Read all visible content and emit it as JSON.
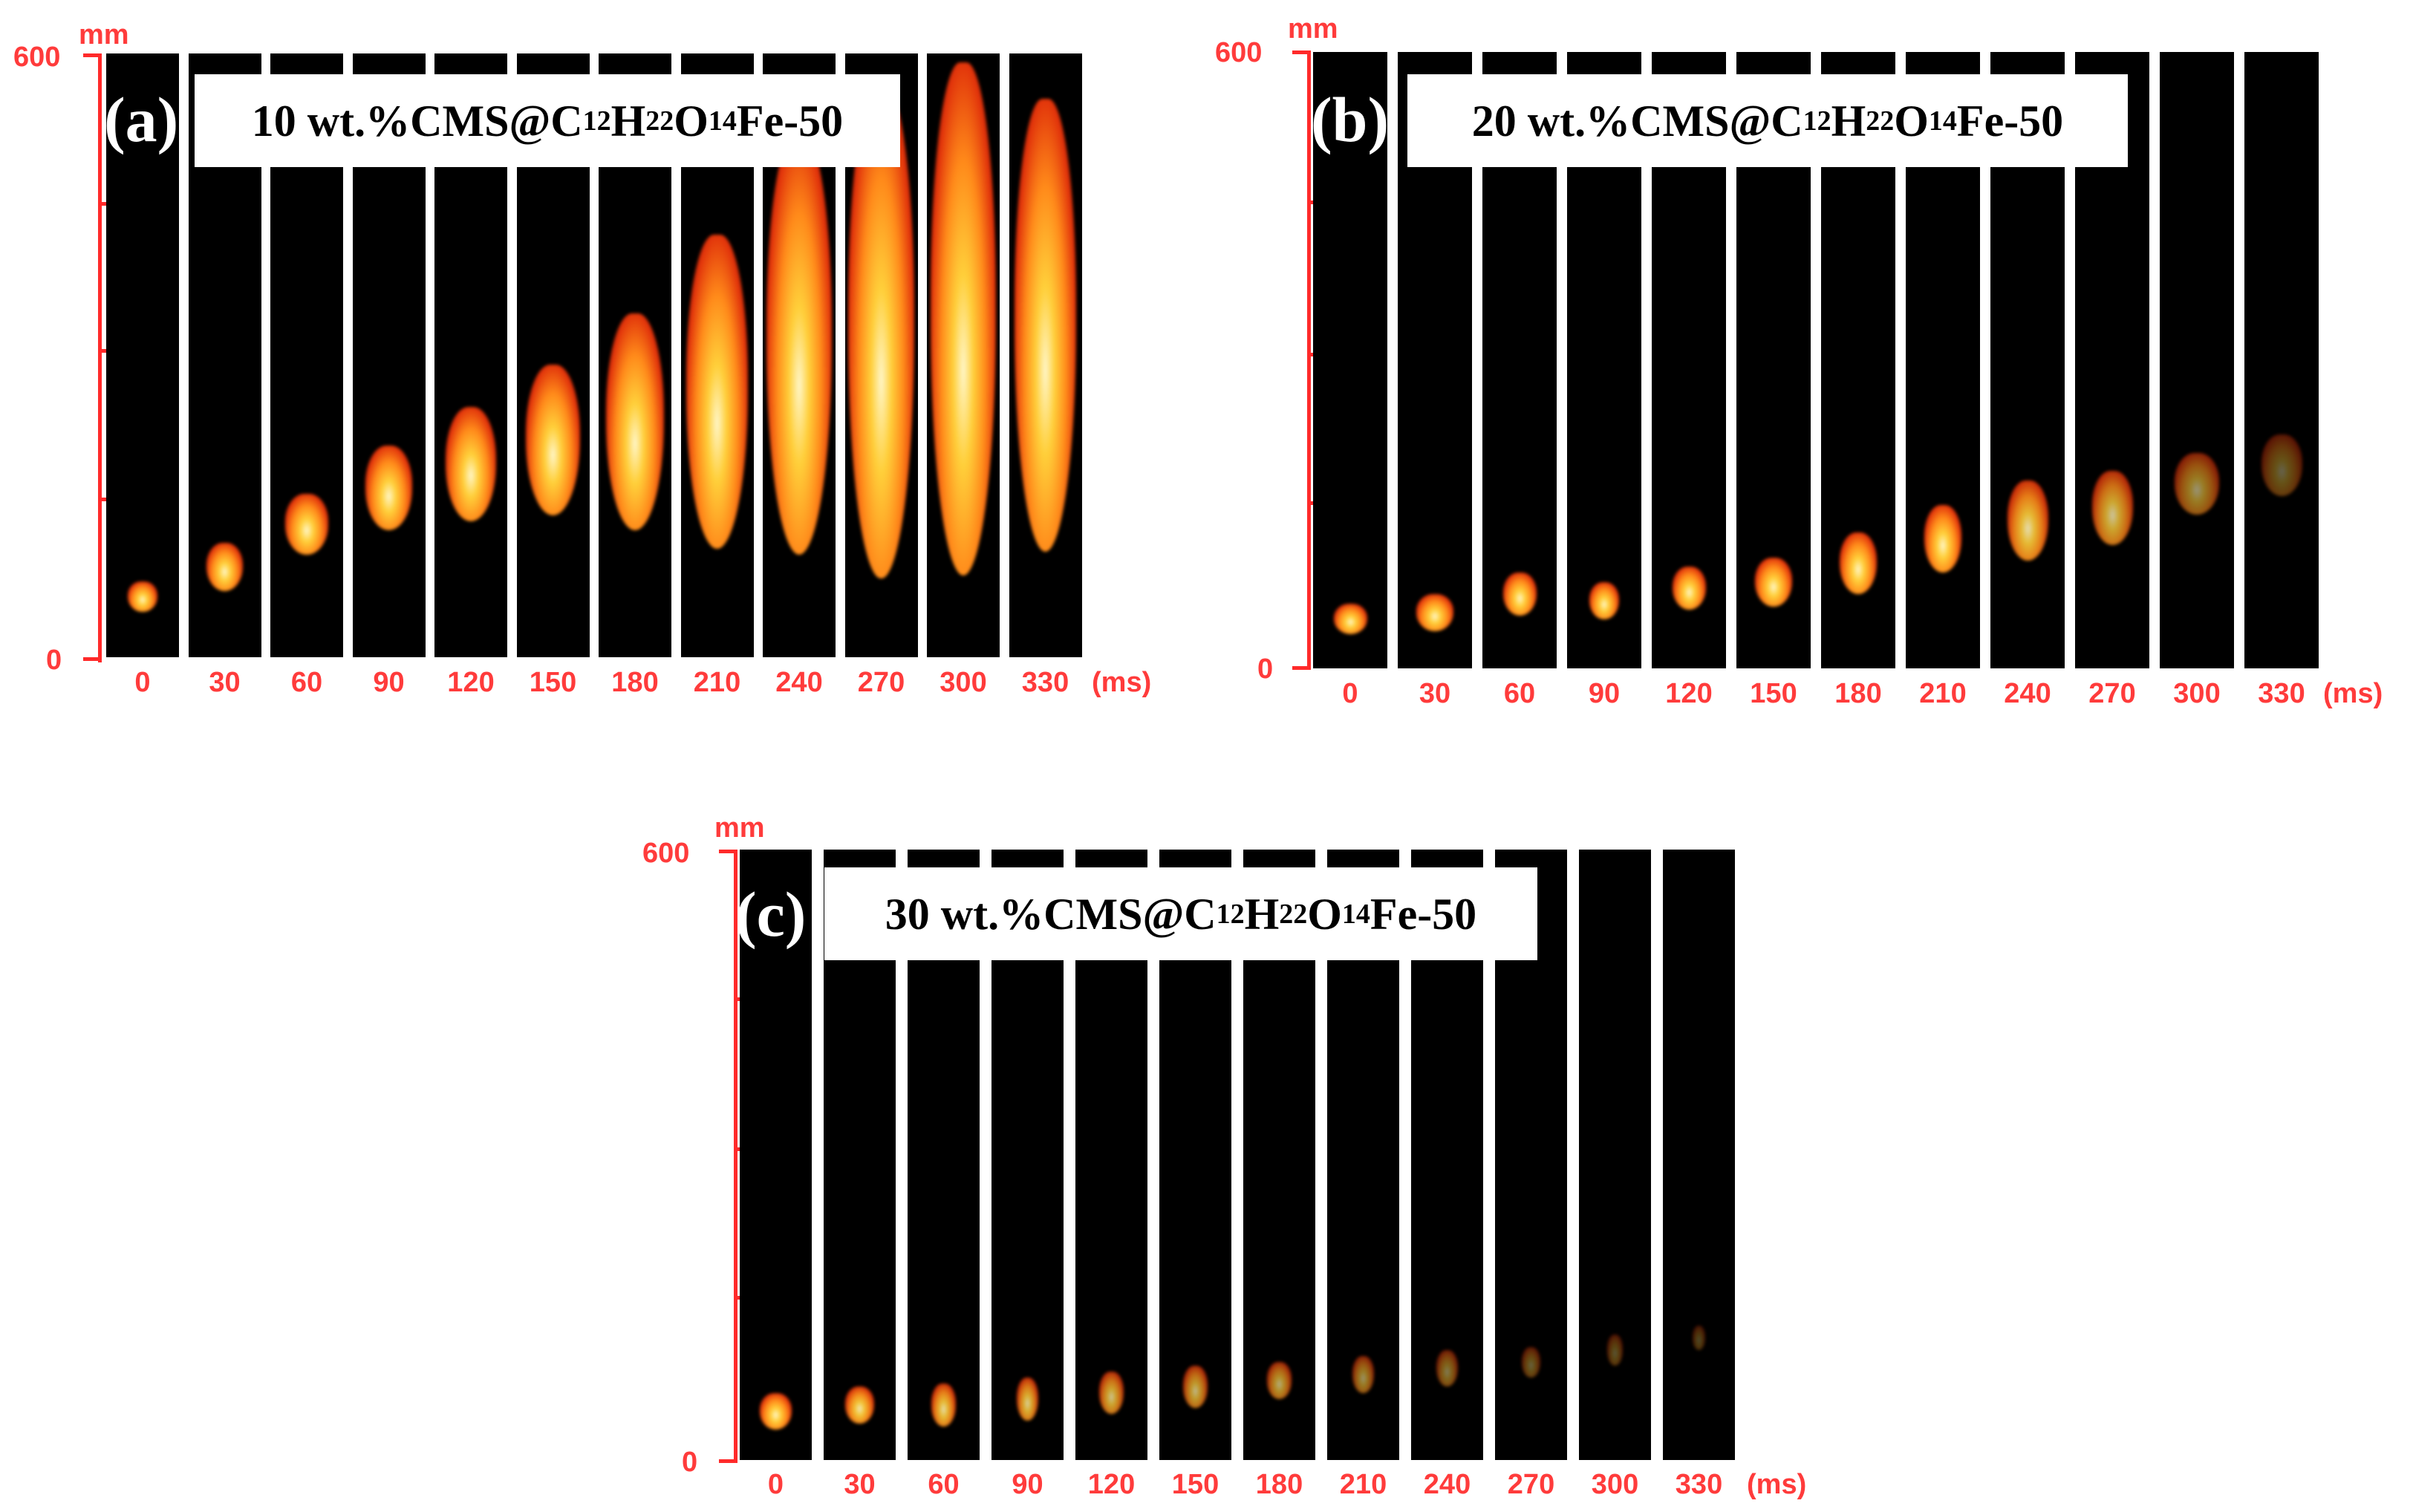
{
  "colors": {
    "axis": "#ff2a2a",
    "frame_bg": "#000000"
  },
  "panels": [
    {
      "letter": "(a)",
      "title_prefix": "10 wt.%CMS@C",
      "sub1": "12",
      "mid1": "H",
      "sub2": "22",
      "mid2": "O",
      "sub3": "14",
      "title_suffix": "Fe-50",
      "axis_top": "600",
      "axis_bottom": "0",
      "axis_unit": "mm",
      "times": [
        "0",
        "30",
        "60",
        "90",
        "120",
        "150",
        "180",
        "210",
        "240",
        "270",
        "300",
        "330"
      ],
      "time_unit": "(ms)"
    },
    {
      "letter": "(b)",
      "title_prefix": "20 wt.%CMS@C",
      "sub1": "12",
      "mid1": "H",
      "sub2": "22",
      "mid2": "O",
      "sub3": "14",
      "title_suffix": "Fe-50",
      "axis_top": "600",
      "axis_bottom": "0",
      "axis_unit": "mm",
      "times": [
        "0",
        "30",
        "60",
        "90",
        "120",
        "150",
        "180",
        "210",
        "240",
        "270",
        "300",
        "330"
      ],
      "time_unit": "(ms)"
    },
    {
      "letter": "(c)",
      "title_prefix": "30 wt.%CMS@C",
      "sub1": "12",
      "mid1": "H",
      "sub2": "22",
      "mid2": "O",
      "sub3": "14",
      "title_suffix": "Fe-50",
      "axis_top": "600",
      "axis_bottom": "0",
      "axis_unit": "mm",
      "times": [
        "0",
        "30",
        "60",
        "90",
        "120",
        "150",
        "180",
        "210",
        "240",
        "270",
        "300",
        "330"
      ],
      "time_unit": "(ms)"
    }
  ]
}
